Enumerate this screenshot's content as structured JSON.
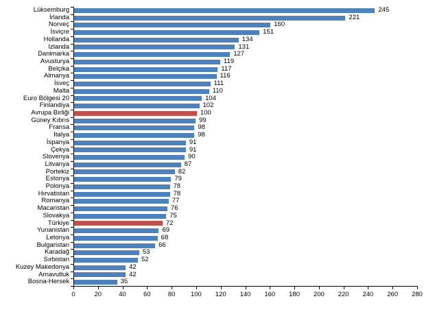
{
  "chart_data": {
    "type": "bar",
    "orientation": "horizontal",
    "categories": [
      "Lüksemburg",
      "İrlanda",
      "Norveç",
      "İsviçre",
      "Hollanda",
      "Izlanda",
      "Danimarka",
      "Avusturya",
      "Belçika",
      "Almanya",
      "İsveç",
      "Malta",
      "Euro Bölgesi 20",
      "Finlandiya",
      "Avrupa Birliği",
      "Güney Kıbrıs",
      "Fransa",
      "İtalya",
      "İspanya",
      "Çekya",
      "Slovenya",
      "Litvanya",
      "Portekiz",
      "Estonya",
      "Polonya",
      "Hırvatistan",
      "Romanya",
      "Macaristan",
      "Slovakya",
      "Türkiye",
      "Yunanistan",
      "Letonya",
      "Bulgaristan",
      "Karadağ",
      "Sırbistan",
      "Kuzey Makedonya",
      "Arnavutluk",
      "Bosna-Hersek"
    ],
    "values": [
      245,
      221,
      160,
      151,
      134,
      131,
      127,
      119,
      117,
      116,
      111,
      110,
      104,
      102,
      100,
      99,
      98,
      98,
      91,
      91,
      90,
      87,
      82,
      79,
      78,
      78,
      77,
      76,
      75,
      72,
      69,
      68,
      66,
      53,
      52,
      42,
      42,
      35
    ],
    "highlighted_categories": [
      "Avrupa Birliği",
      "Türkiye"
    ],
    "bar_color": "#4F81BD",
    "highlight_color": "#C0504D",
    "axis_color": "#000000",
    "xlim": [
      0,
      280
    ],
    "x_ticks": [
      0,
      20,
      40,
      60,
      80,
      100,
      120,
      140,
      160,
      180,
      200,
      220,
      240,
      260,
      280
    ],
    "title": "",
    "xlabel": "",
    "ylabel": "",
    "grid": false,
    "legend": false,
    "value_labels": true
  }
}
